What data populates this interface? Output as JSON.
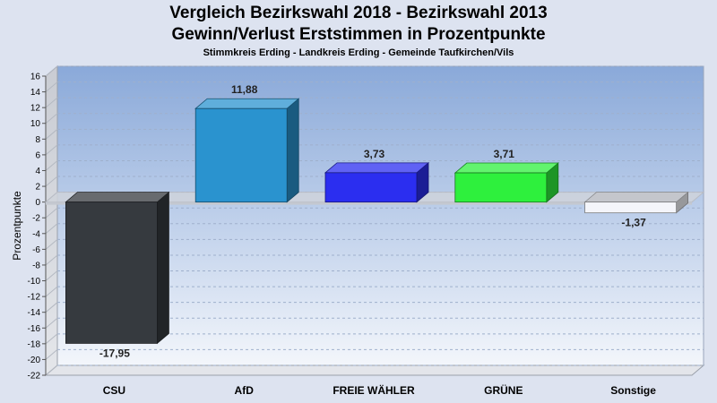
{
  "chart_data": {
    "type": "bar",
    "title": [
      "Vergleich Bezirkswahl 2018 - Bezirkswahl 2013",
      "Gewinn/Verlust Erststimmen in Prozentpunkte"
    ],
    "subtitle": "Stimmkreis Erding - Landkreis Erding - Gemeinde Taufkirchen/Vils",
    "ylabel": "Prozentpunkte",
    "xlabel": "",
    "ylim": [
      -22,
      16
    ],
    "ytick_step": 2,
    "grid": true,
    "legend": "none",
    "categories": [
      "CSU",
      "AfD",
      "FREIE WÄHLER",
      "GRÜNE",
      "Sonstige"
    ],
    "values": [
      -17.95,
      11.88,
      3.73,
      3.71,
      -1.37
    ],
    "value_labels": [
      "-17,95",
      "11,88",
      "3,73",
      "3,71",
      "-1,37"
    ],
    "colors": [
      "#363a3f",
      "#2a93cf",
      "#2b2ef0",
      "#2ef03d",
      "#f4f5fa"
    ]
  }
}
